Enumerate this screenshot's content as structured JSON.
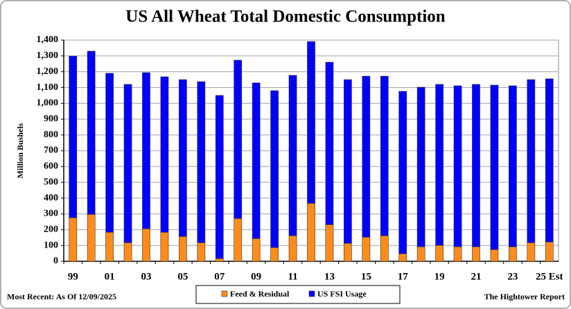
{
  "chart_data": {
    "type": "stacked_bar",
    "title": "US All Wheat Total Domestic Consumption",
    "y_label": "Million Bushels",
    "footnote_left": "Most Recent: As Of 12/09/2025",
    "footnote_right": "The Hightower Report",
    "categories": [
      "99",
      null,
      "01",
      null,
      "03",
      null,
      "05",
      null,
      "07",
      null,
      "09",
      null,
      "11",
      null,
      "13",
      null,
      "15",
      null,
      "17",
      null,
      "19",
      null,
      "21",
      null,
      "23",
      null,
      "25 Est"
    ],
    "series": [
      {
        "name": "Feed & Residual",
        "color": "#ff8c1a",
        "values": [
          276,
          297,
          184,
          118,
          206,
          184,
          157,
          118,
          17,
          271,
          144,
          87,
          162,
          367,
          232,
          114,
          153,
          162,
          48,
          92,
          101,
          92,
          92,
          74,
          92,
          118,
          122
        ]
      },
      {
        "name": "US FSI Usage",
        "color": "#0000ff",
        "values": [
          1023,
          1033,
          1006,
          1002,
          988,
          984,
          993,
          1019,
          1033,
          1002,
          985,
          993,
          1015,
          1024,
          1028,
          1036,
          1019,
          1010,
          1028,
          1010,
          1019,
          1019,
          1028,
          1041,
          1019,
          1032,
          1033
        ]
      }
    ],
    "ylim": [
      0,
      1400
    ],
    "yticks": [
      0,
      100,
      200,
      300,
      400,
      500,
      600,
      700,
      800,
      900,
      {
        "value": 1000,
        "label": "1,000"
      },
      {
        "value": 1100,
        "label": "1,100"
      },
      {
        "value": 1200,
        "label": "1,200"
      },
      {
        "value": 1300,
        "label": "1,300"
      },
      {
        "value": 1400,
        "label": "1,400"
      }
    ],
    "grid": true
  }
}
